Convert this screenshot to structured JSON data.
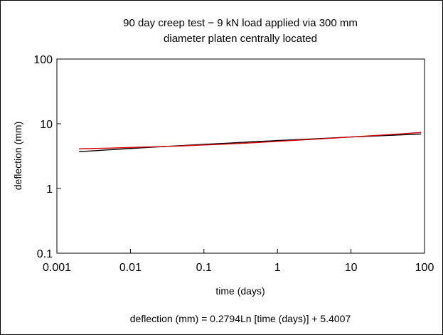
{
  "chart_data": {
    "type": "line",
    "title_line1": "90 day creep test − 9 kN load applied via 300 mm",
    "title_line2": "diameter platen centrally located",
    "xlabel": "time (days)",
    "ylabel": "deflection (mm)",
    "x_scale": "log",
    "y_scale": "log",
    "xlim": [
      0.001,
      100
    ],
    "ylim": [
      0.1,
      100
    ],
    "x_ticks": [
      0.001,
      0.01,
      0.1,
      1,
      10,
      100
    ],
    "x_tick_labels": [
      "0.001",
      "0.01",
      "0.1",
      "1",
      "10",
      "100"
    ],
    "y_ticks": [
      0.1,
      1,
      10,
      100
    ],
    "y_tick_labels": [
      "0.1",
      "1",
      "10",
      "100"
    ],
    "grid": false,
    "series": [
      {
        "color": "#000000",
        "x": [
          0.002,
          0.005,
          0.01,
          0.02,
          0.05,
          0.1,
          0.2,
          0.5,
          1,
          2,
          5,
          10,
          20,
          50,
          90
        ],
        "y": [
          3.7,
          3.95,
          4.15,
          4.35,
          4.6,
          4.8,
          5.0,
          5.3,
          5.5,
          5.7,
          6.0,
          6.25,
          6.45,
          6.75,
          6.95
        ]
      },
      {
        "color": "#d40000",
        "x": [
          0.002,
          0.005,
          0.01,
          0.02,
          0.05,
          0.1,
          0.2,
          0.5,
          1,
          2,
          5,
          10,
          20,
          50,
          90
        ],
        "y": [
          4.1,
          4.2,
          4.3,
          4.4,
          4.55,
          4.7,
          4.85,
          5.1,
          5.35,
          5.6,
          5.95,
          6.25,
          6.55,
          7.0,
          7.35
        ]
      }
    ],
    "equation": "deflection (mm) = 0.2794Ln [time (days)] + 5.4007"
  }
}
